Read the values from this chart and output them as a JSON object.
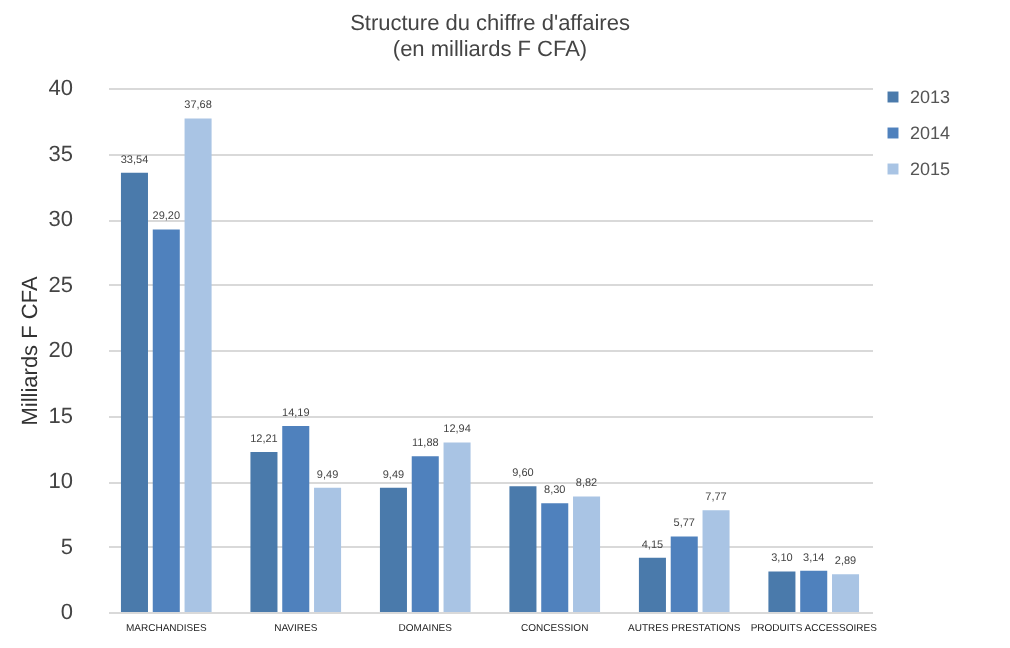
{
  "chart_data": {
    "type": "bar",
    "title": "Structure du chiffre d'affaires",
    "subtitle": "(en milliards F CFA)",
    "ylabel": "Milliards F CFA",
    "categories": [
      "MARCHANDISES",
      "NAVIRES",
      "DOMAINES",
      "CONCESSION",
      "AUTRES PRESTATIONS",
      "PRODUITS ACCESSOIRES"
    ],
    "series": [
      {
        "name": "2013",
        "color": "#4a7aab",
        "values": [
          33.54,
          12.21,
          9.49,
          9.6,
          4.15,
          3.1
        ],
        "value_labels": [
          "33,54",
          "12,21",
          "9,49",
          "9,60",
          "4,15",
          "3,10"
        ]
      },
      {
        "name": "2014",
        "color": "#4f81bd",
        "values": [
          29.2,
          14.19,
          11.88,
          8.3,
          5.77,
          3.14
        ],
        "value_labels": [
          "29,20",
          "14,19",
          "11,88",
          "8,30",
          "5,77",
          "3,14"
        ]
      },
      {
        "name": "2015",
        "color": "#a9c4e4",
        "values": [
          37.68,
          9.49,
          12.94,
          8.82,
          7.77,
          2.89
        ],
        "value_labels": [
          "37,68",
          "9,49",
          "12,94",
          "8,82",
          "7,77",
          "2,89"
        ]
      }
    ],
    "ylim": [
      0,
      40
    ],
    "yticks": [
      0,
      5,
      10,
      15,
      20,
      25,
      30,
      35,
      40
    ],
    "grid": "y",
    "legend": "right"
  }
}
